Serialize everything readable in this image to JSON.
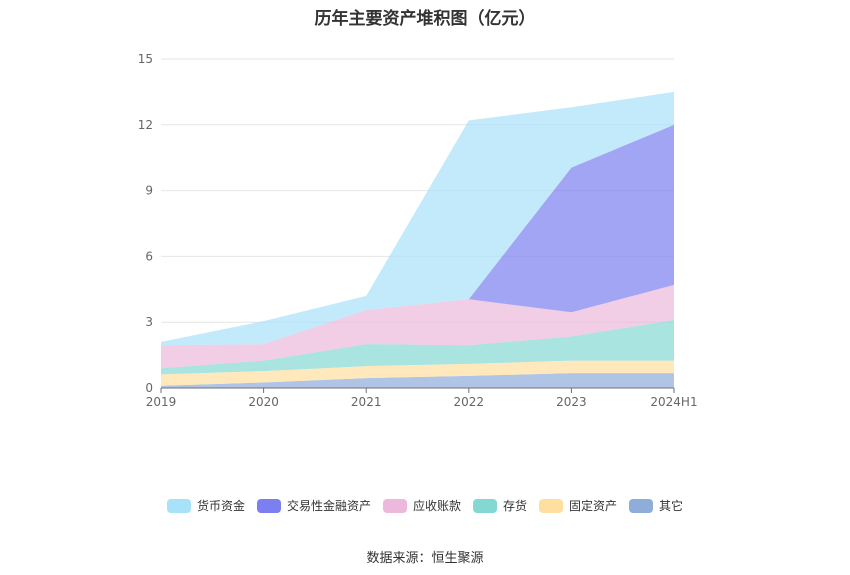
{
  "title": "历年主要资产堆积图（亿元）",
  "source": "数据来源：恒生聚源",
  "colors": {
    "货币资金": "#a8e1fa",
    "交易性金融资产": "#7b7ff0",
    "应收账款": "#ecb8dc",
    "存货": "#84d8d3",
    "固定资产": "#ffdfa0",
    "其它": "#8fadda"
  },
  "legend": [
    "货币资金",
    "交易性金融资产",
    "应收账款",
    "存货",
    "固定资产",
    "其它"
  ],
  "chart_data": {
    "type": "area",
    "stacked": true,
    "title": "历年主要资产堆积图（亿元）",
    "categories": [
      "2019",
      "2020",
      "2021",
      "2022",
      "2023",
      "2024H1"
    ],
    "y_ticks": [
      "0",
      "3",
      "6",
      "9",
      "12",
      "15"
    ],
    "ylim": [
      0,
      15
    ],
    "grid": true,
    "legend_position": "bottom",
    "series": [
      {
        "name": "其它",
        "values": [
          0.1,
          0.25,
          0.45,
          0.55,
          0.68,
          0.68
        ]
      },
      {
        "name": "固定资产",
        "values": [
          0.52,
          0.52,
          0.55,
          0.55,
          0.57,
          0.57
        ]
      },
      {
        "name": "存货",
        "values": [
          0.28,
          0.48,
          1.0,
          0.85,
          1.1,
          1.85
        ]
      },
      {
        "name": "应收账款",
        "values": [
          1.05,
          0.75,
          1.55,
          2.1,
          1.1,
          1.6
        ]
      },
      {
        "name": "交易性金融资产",
        "values": [
          0,
          0,
          0,
          0,
          6.6,
          7.3
        ]
      },
      {
        "name": "货币资金",
        "values": [
          0.15,
          1.05,
          0.65,
          8.15,
          2.75,
          1.5
        ]
      }
    ]
  }
}
